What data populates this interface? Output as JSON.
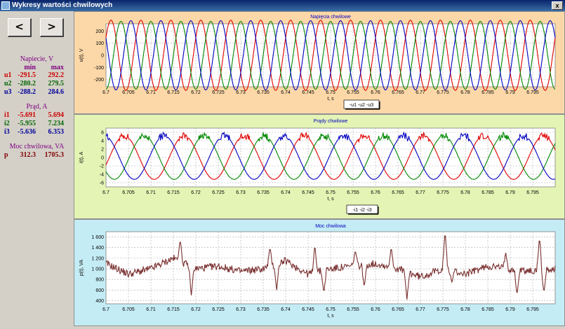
{
  "window": {
    "title": "Wykresy wartości chwilowych",
    "close_label": "x"
  },
  "nav": {
    "prev_label": "<",
    "next_label": ">"
  },
  "stats": {
    "voltage": {
      "title": "Napiecie, V",
      "min_label": "min",
      "max_label": "max",
      "rows": [
        {
          "name": "u1",
          "min": "-291.5",
          "max": "292.2",
          "color": "#cc0000"
        },
        {
          "name": "u2",
          "min": "-280.2",
          "max": "279.5",
          "color": "#006600"
        },
        {
          "name": "u3",
          "min": "-288.2",
          "max": "284.6",
          "color": "#000099"
        }
      ]
    },
    "current": {
      "title": "Prąd, A",
      "rows": [
        {
          "name": "i1",
          "min": "-5.691",
          "max": "5.694",
          "color": "#cc0000"
        },
        {
          "name": "i2",
          "min": "-5.955",
          "max": "7.234",
          "color": "#006600"
        },
        {
          "name": "i3",
          "min": "-5.636",
          "max": "6.353",
          "color": "#000099"
        }
      ]
    },
    "power": {
      "title": "Moc chwilowa, VA",
      "rows": [
        {
          "name": "p",
          "min": "312.3",
          "max": "1705.3",
          "color": "#800000"
        }
      ]
    }
  },
  "chart_data": [
    {
      "type": "line",
      "title": "Napięcia chwilowe",
      "xlabel": "t, s",
      "ylabel": "u(t), V",
      "xlim": [
        6.7,
        6.8
      ],
      "ylim": [
        -260,
        260
      ],
      "xticks": [
        "6.7",
        "6.705",
        "6.71",
        "6.715",
        "6.72",
        "6.725",
        "6.73",
        "6.735",
        "6.74",
        "6.745",
        "6.75",
        "6.755",
        "6.76",
        "6.765",
        "6.77",
        "6.775",
        "6.78",
        "6.785",
        "6.79",
        "6.795"
      ],
      "yticks": [
        -200,
        -100,
        0,
        100,
        200
      ],
      "legend": [
        "-u1",
        "-u2",
        "-u3"
      ],
      "legend_position": "bottom-center",
      "grid": true,
      "series": [
        {
          "name": "u1",
          "color": "#e00000",
          "amplitude": 290,
          "frequency_hz": 150,
          "phase_deg": 30
        },
        {
          "name": "u2",
          "color": "#008800",
          "amplitude": 280,
          "frequency_hz": 150,
          "phase_deg": -90
        },
        {
          "name": "u3",
          "color": "#0000c0",
          "amplitude": 286,
          "frequency_hz": 150,
          "phase_deg": 150
        }
      ]
    },
    {
      "type": "line",
      "title": "Prądy chwilowe",
      "xlabel": "t, s",
      "ylabel": "i(t), A",
      "xlim": [
        6.7,
        6.8
      ],
      "ylim": [
        -7,
        7
      ],
      "xticks": [
        "6.7",
        "6.705",
        "6.71",
        "6.715",
        "6.72",
        "6.725",
        "6.73",
        "6.735",
        "6.74",
        "6.745",
        "6.75",
        "6.755",
        "6.76",
        "6.765",
        "6.77",
        "6.775",
        "6.78",
        "6.785",
        "6.79",
        "6.795"
      ],
      "yticks": [
        -6,
        -4,
        -2,
        0,
        2,
        4,
        6
      ],
      "legend": [
        "-i1",
        "-i2",
        "-i3"
      ],
      "legend_position": "bottom-center",
      "grid": true,
      "series": [
        {
          "name": "i1",
          "color": "#e00000",
          "amplitude": 5.2,
          "frequency_hz": 75,
          "phase_deg": -20
        },
        {
          "name": "i2",
          "color": "#008800",
          "amplitude": 5.2,
          "frequency_hz": 75,
          "phase_deg": 220
        },
        {
          "name": "i3",
          "color": "#0000c0",
          "amplitude": 5.2,
          "frequency_hz": 75,
          "phase_deg": 100
        }
      ]
    },
    {
      "type": "line",
      "title": "Moc chwilowa",
      "xlabel": "t, s",
      "ylabel": "p(t), VA",
      "xlim": [
        6.7,
        6.8
      ],
      "ylim": [
        340,
        1700
      ],
      "xticks": [
        "6.7",
        "6.705",
        "6.71",
        "6.715",
        "6.72",
        "6.725",
        "6.73",
        "6.735",
        "6.74",
        "6.745",
        "6.75",
        "6.755",
        "6.76",
        "6.765",
        "6.77",
        "6.775",
        "6.78",
        "6.785",
        "6.79",
        "6.795"
      ],
      "yticks": [
        400,
        600,
        800,
        1000,
        1200,
        1400,
        1600
      ],
      "ytick_labels": [
        "400",
        "600",
        "800",
        "1 000",
        "1 200",
        "1 400",
        "1 600"
      ],
      "grid": true,
      "series": [
        {
          "name": "p",
          "color": "#7a3030",
          "mean": 1000,
          "x": [
            6.7,
            6.705,
            6.71,
            6.715,
            6.72,
            6.725,
            6.73,
            6.735,
            6.74,
            6.745,
            6.75,
            6.755,
            6.76,
            6.765,
            6.77,
            6.775,
            6.78,
            6.785,
            6.79,
            6.795,
            6.8
          ],
          "values": [
            1100,
            900,
            1000,
            1200,
            1000,
            1050,
            950,
            1000,
            1150,
            900,
            1000,
            1050,
            1100,
            1000,
            850,
            1000,
            900,
            1050,
            1000,
            950,
            1000
          ],
          "spikes": [
            [
              6.7165,
              1550
            ],
            [
              6.719,
              500
            ],
            [
              6.7365,
              1400
            ],
            [
              6.738,
              600
            ],
            [
              6.7465,
              1450
            ],
            [
              6.7485,
              550
            ],
            [
              6.7555,
              1350
            ],
            [
              6.7575,
              650
            ],
            [
              6.7635,
              1400
            ],
            [
              6.767,
              420
            ],
            [
              6.7755,
              1700
            ],
            [
              6.777,
              750
            ],
            [
              6.789,
              1300
            ],
            [
              6.7915,
              500
            ],
            [
              6.7965,
              1600
            ],
            [
              6.7975,
              550
            ]
          ]
        }
      ]
    }
  ]
}
